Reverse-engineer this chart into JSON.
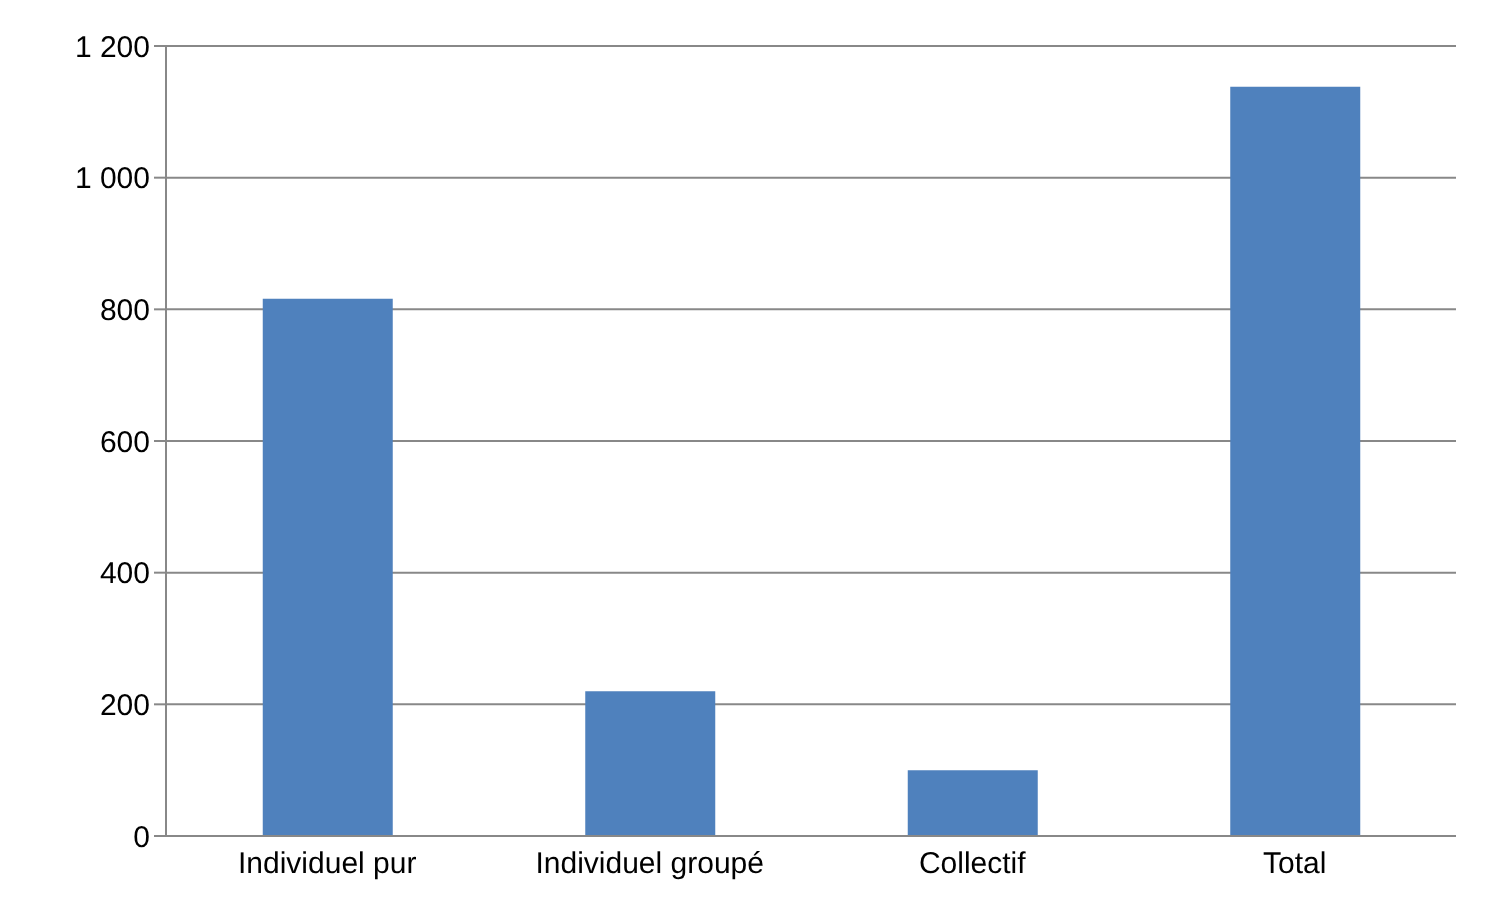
{
  "chart_data": {
    "type": "bar",
    "categories": [
      "Individuel pur",
      "Individuel groupé",
      "Collectif",
      "Total"
    ],
    "values": [
      816,
      220,
      100,
      1138
    ],
    "color": "#4f81bd",
    "ylim": [
      0,
      1200
    ],
    "yticks": [
      0,
      200,
      400,
      600,
      800,
      {
        "value": 1000,
        "label": "1 000"
      },
      {
        "value": 1200,
        "label": "1 200"
      }
    ],
    "grid": "y"
  }
}
